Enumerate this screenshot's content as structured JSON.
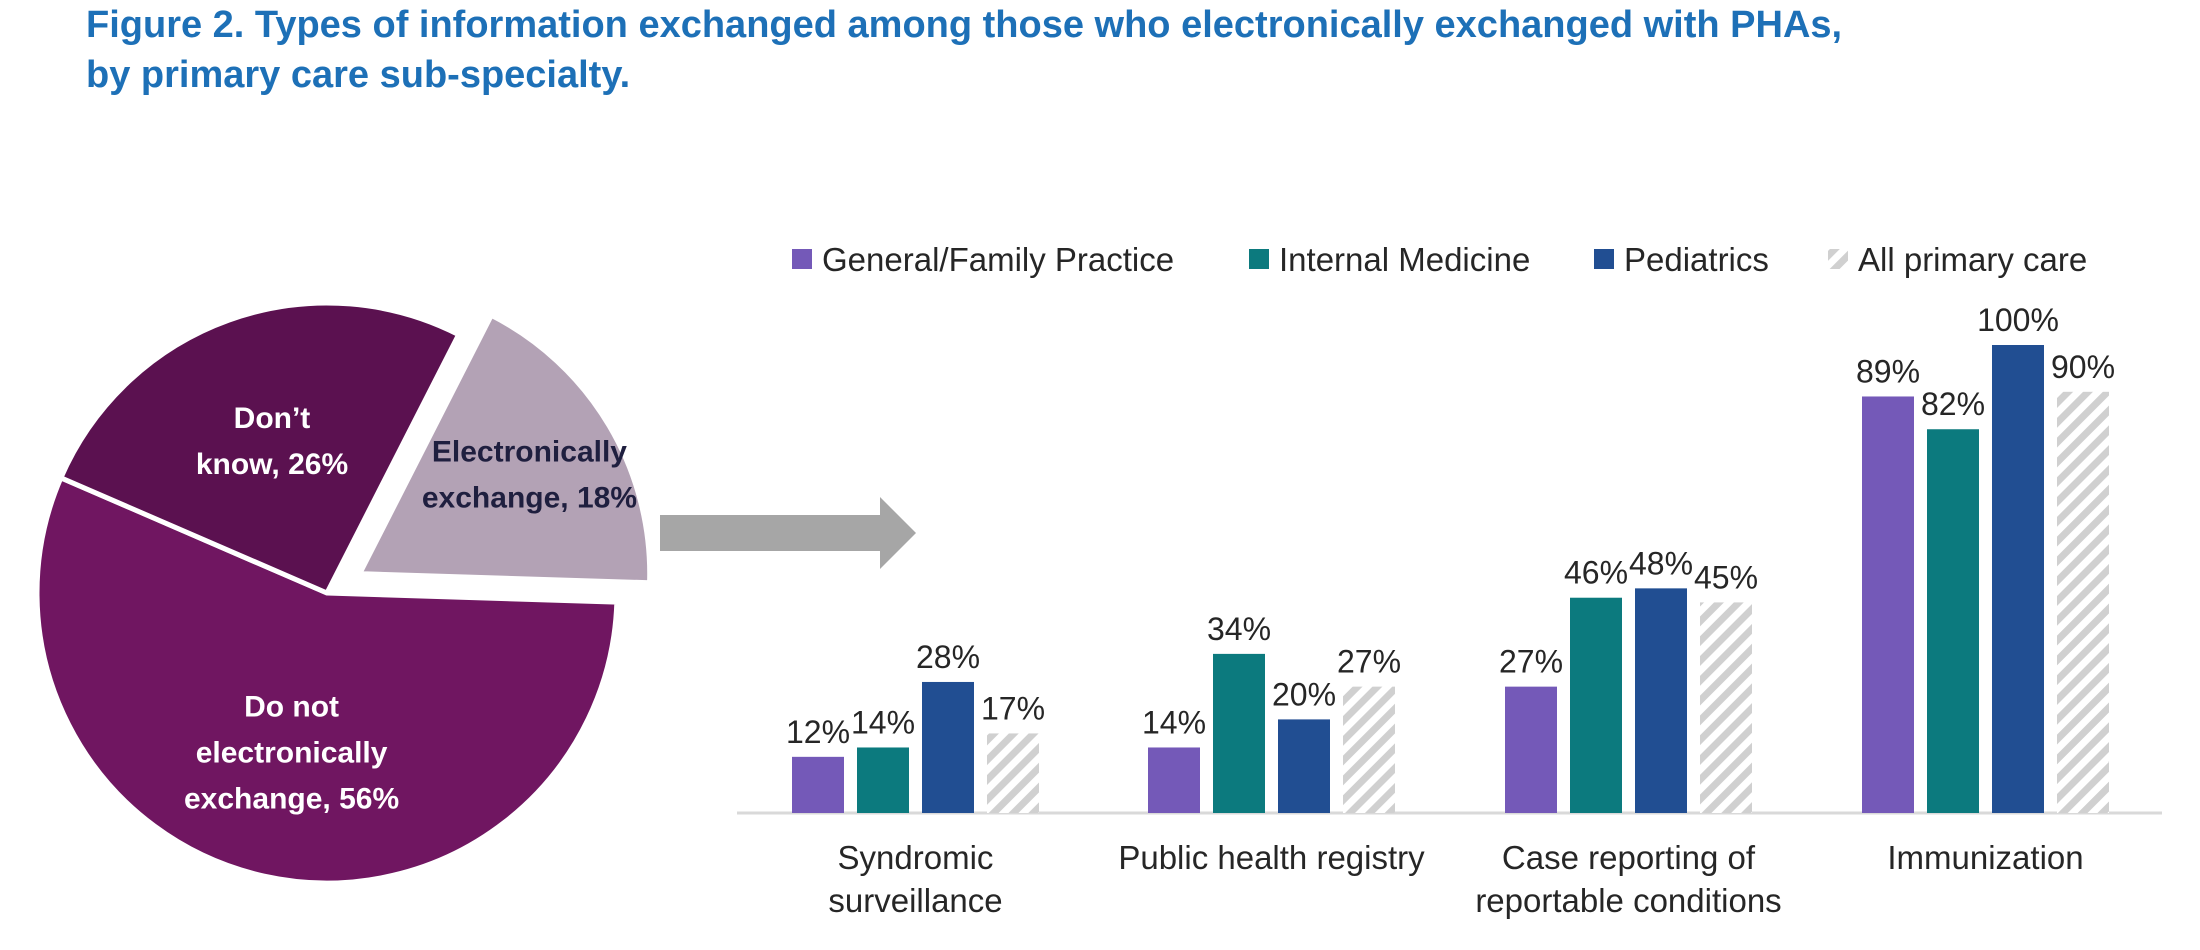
{
  "figure": {
    "title_line1": "Figure 2. Types of information exchanged among those who electronically exchanged with PHAs,",
    "title_line2": "by primary care sub-specialty."
  },
  "chart_data": [
    {
      "type": "pie",
      "slices": [
        {
          "label_lines": [
            "Electronically",
            "exchange, 18%"
          ],
          "value": 18,
          "color": "#b3a2b5",
          "text_color": "#1f1f3f",
          "exploded": true
        },
        {
          "label_lines": [
            "Do not",
            "electronically",
            "exchange, 56%"
          ],
          "value": 56,
          "color": "#701661",
          "text_color": "#ffffff",
          "exploded": false
        },
        {
          "label_lines": [
            "Don’t",
            "know, 26%"
          ],
          "value": 26,
          "color": "#5b1150",
          "text_color": "#ffffff",
          "exploded": false
        }
      ]
    },
    {
      "type": "bar",
      "categories": [
        [
          "Syndromic",
          "surveillance"
        ],
        [
          "Public health registry"
        ],
        [
          "Case reporting of",
          "reportable conditions"
        ],
        [
          "Immunization"
        ]
      ],
      "series": [
        {
          "name": "General/Family Practice",
          "color": "#7459b8",
          "pattern": "solid",
          "values": [
            12,
            14,
            27,
            89
          ],
          "labels": [
            "12%",
            "14%",
            "27%",
            "89%"
          ]
        },
        {
          "name": "Internal Medicine",
          "color": "#0c7a7e",
          "pattern": "solid",
          "values": [
            14,
            34,
            46,
            82
          ],
          "labels": [
            "14%",
            "34%",
            "46%",
            "82%"
          ]
        },
        {
          "name": "Pediatrics",
          "color": "#214e92",
          "pattern": "solid",
          "values": [
            28,
            20,
            48,
            100
          ],
          "labels": [
            "28%",
            "20%",
            "48%",
            "100%"
          ]
        },
        {
          "name": "All primary care",
          "color": "#d0d0d0",
          "pattern": "hatched",
          "values": [
            17,
            27,
            45,
            90
          ],
          "labels": [
            "17%",
            "27%",
            "45%",
            "90%"
          ]
        }
      ],
      "ylim": [
        0,
        100
      ],
      "legend": "top",
      "grid": false,
      "arrow_color": "#a6a6a6"
    }
  ]
}
